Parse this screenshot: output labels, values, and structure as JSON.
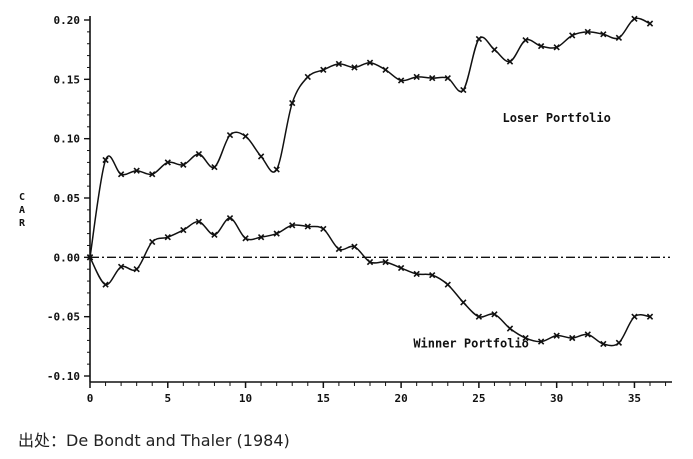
{
  "chart_data": {
    "type": "line",
    "ylabel": "CAR",
    "ylabel_chars": [
      "C",
      "A",
      "R"
    ],
    "xlim": [
      0,
      36
    ],
    "ylim": [
      -0.1,
      0.2
    ],
    "x_ticks": [
      0,
      5,
      10,
      15,
      20,
      25,
      30,
      35
    ],
    "x_tick_labels": [
      "0",
      "5",
      "10",
      "15",
      "20",
      "25",
      "30",
      "35"
    ],
    "y_ticks": [
      0.2,
      0.15,
      0.1,
      0.05,
      0.0,
      -0.05,
      -0.1
    ],
    "y_tick_labels": [
      "0.20",
      "0.15",
      "0.10",
      "0.05",
      "0.00",
      "-0.05",
      "-0.10"
    ],
    "zero_line": "dash-dot",
    "grid": false,
    "series": [
      {
        "name": "Loser Portfolio",
        "x": [
          0,
          1,
          2,
          3,
          4,
          5,
          6,
          7,
          8,
          9,
          10,
          11,
          12,
          13,
          14,
          15,
          16,
          17,
          18,
          19,
          20,
          21,
          22,
          23,
          24,
          25,
          26,
          27,
          28,
          29,
          30,
          31,
          32,
          33,
          34,
          35,
          36
        ],
        "values": [
          0.0,
          0.082,
          0.07,
          0.073,
          0.07,
          0.08,
          0.078,
          0.087,
          0.076,
          0.103,
          0.102,
          0.085,
          0.074,
          0.13,
          0.152,
          0.158,
          0.163,
          0.16,
          0.164,
          0.158,
          0.149,
          0.152,
          0.151,
          0.151,
          0.141,
          0.184,
          0.175,
          0.165,
          0.183,
          0.178,
          0.177,
          0.187,
          0.19,
          0.188,
          0.185,
          0.201,
          0.197
        ]
      },
      {
        "name": "Winner Portfolio",
        "x": [
          0,
          1,
          2,
          3,
          4,
          5,
          6,
          7,
          8,
          9,
          10,
          11,
          12,
          13,
          14,
          15,
          16,
          17,
          18,
          19,
          20,
          21,
          22,
          23,
          24,
          25,
          26,
          27,
          28,
          29,
          30,
          31,
          32,
          33,
          34,
          35,
          36
        ],
        "values": [
          0.0,
          -0.023,
          -0.008,
          -0.01,
          0.013,
          0.017,
          0.023,
          0.03,
          0.019,
          0.033,
          0.016,
          0.017,
          0.02,
          0.027,
          0.026,
          0.024,
          0.007,
          0.009,
          -0.004,
          -0.004,
          -0.009,
          -0.014,
          -0.015,
          -0.023,
          -0.038,
          -0.05,
          -0.048,
          -0.06,
          -0.068,
          -0.071,
          -0.066,
          -0.068,
          -0.065,
          -0.073,
          -0.072,
          -0.05,
          -0.05
        ]
      }
    ],
    "annotations": [
      {
        "text": "Loser Portfolio",
        "x": 30,
        "y": 0.114
      },
      {
        "text": "Winner Portfolio",
        "x": 24.5,
        "y": -0.076
      }
    ]
  },
  "source_text": "出处：De Bondt and Thaler (1984)"
}
